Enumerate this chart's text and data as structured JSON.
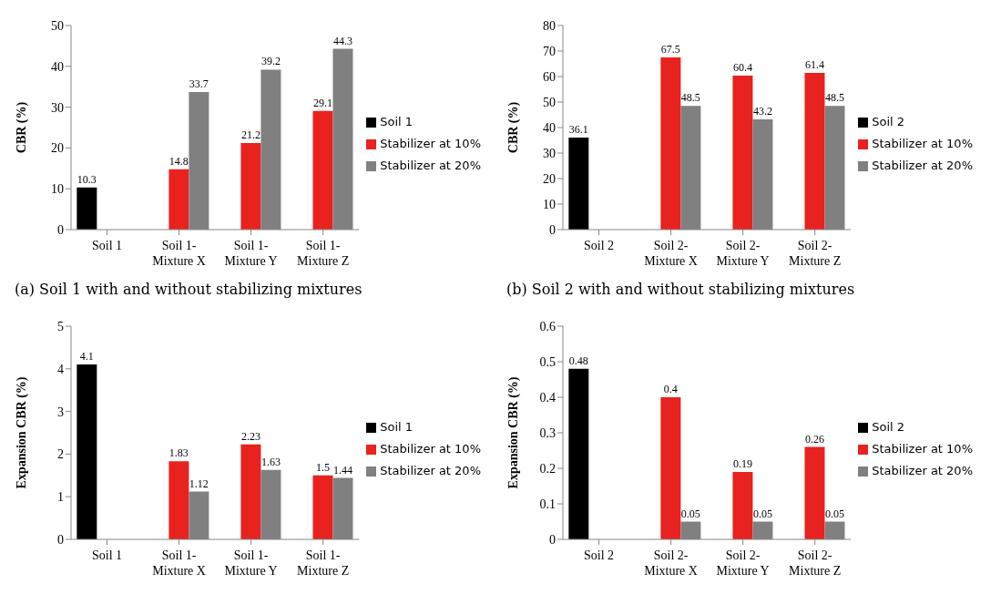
{
  "chart_data": [
    {
      "type": "bar",
      "ylabel": "CBR (%)",
      "categories": [
        "Soil 1",
        "Soil 1-Mixture X",
        "Soil 1-Mixture Y",
        "Soil 1-Mixture Z"
      ],
      "series": [
        {
          "name": "Soil 1",
          "color": "#000000",
          "values": [
            10.3,
            null,
            null,
            null
          ]
        },
        {
          "name": "Stabilizer at 10%",
          "color": "#e8221f",
          "values": [
            null,
            14.8,
            21.2,
            29.1
          ]
        },
        {
          "name": "Stabilizer at 20%",
          "color": "#808080",
          "values": [
            null,
            33.7,
            39.2,
            44.3
          ]
        }
      ],
      "ylim": [
        0,
        50
      ],
      "yticks": [
        0,
        10,
        20,
        30,
        40,
        50
      ],
      "grid": false,
      "legend": "right",
      "data_labels": true,
      "annotations": [
        "(a) Soil 1 with and without stabilizing mixtures"
      ]
    },
    {
      "type": "bar",
      "ylabel": "CBR (%)",
      "categories": [
        "Soil 2",
        "Soil 2-Mixture X",
        "Soil 2-Mixture Y",
        "Soil 2-Mixture Z"
      ],
      "series": [
        {
          "name": "Soil 2",
          "color": "#000000",
          "values": [
            36.1,
            null,
            null,
            null
          ]
        },
        {
          "name": "Stabilizer at 10%",
          "color": "#e8221f",
          "values": [
            null,
            67.5,
            60.4,
            61.4
          ]
        },
        {
          "name": "Stabilizer at 20%",
          "color": "#808080",
          "values": [
            null,
            48.5,
            43.2,
            48.5
          ]
        }
      ],
      "ylim": [
        0,
        80
      ],
      "yticks": [
        0,
        10,
        20,
        30,
        40,
        50,
        60,
        70,
        80
      ],
      "grid": false,
      "legend": "right",
      "data_labels": true,
      "annotations": [
        "(b) Soil 2 with and without stabilizing mixtures"
      ]
    },
    {
      "type": "bar",
      "ylabel": "Expansion CBR (%)",
      "categories": [
        "Soil 1",
        "Soil 1-Mixture X",
        "Soil 1-Mixture Y",
        "Soil 1-Mixture Z"
      ],
      "series": [
        {
          "name": "Soil 1",
          "color": "#000000",
          "values": [
            4.1,
            null,
            null,
            null
          ]
        },
        {
          "name": "Stabilizer at 10%",
          "color": "#e8221f",
          "values": [
            null,
            1.83,
            2.23,
            1.5
          ]
        },
        {
          "name": "Stabilizer at 20%",
          "color": "#808080",
          "values": [
            null,
            1.12,
            1.63,
            1.44
          ]
        }
      ],
      "ylim": [
        0,
        5
      ],
      "yticks": [
        0,
        1,
        2,
        3,
        4,
        5
      ],
      "grid": false,
      "legend": "right",
      "data_labels": true
    },
    {
      "type": "bar",
      "ylabel": "Expansion CBR (%)",
      "categories": [
        "Soil 2",
        "Soil 2-Mixture X",
        "Soil 2-Mixture Y",
        "Soil 2-Mixture Z"
      ],
      "series": [
        {
          "name": "Soil 2",
          "color": "#000000",
          "values": [
            0.48,
            null,
            null,
            null
          ]
        },
        {
          "name": "Stabilizer at 10%",
          "color": "#e8221f",
          "values": [
            null,
            0.4,
            0.19,
            0.26
          ]
        },
        {
          "name": "Stabilizer at 20%",
          "color": "#808080",
          "values": [
            null,
            0.05,
            0.05,
            0.05
          ]
        }
      ],
      "ylim": [
        0,
        0.6
      ],
      "yticks": [
        0,
        0.1,
        0.2,
        0.3,
        0.4,
        0.5,
        0.6
      ],
      "grid": false,
      "legend": "right",
      "data_labels": true
    }
  ]
}
